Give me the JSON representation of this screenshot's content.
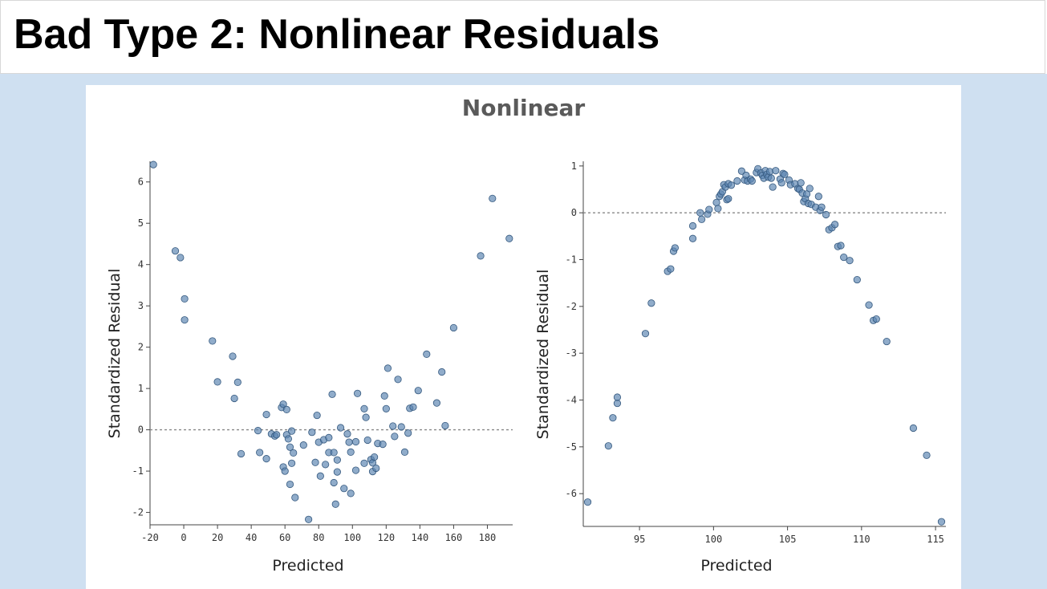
{
  "slide": {
    "title": "Bad Type 2: Nonlinear Residuals",
    "figure_title": "Nonlinear"
  },
  "colors": {
    "slide_background": "#cfe0f1",
    "point_fill": "#5b84b1",
    "point_stroke": "#34587e",
    "reference_line": "#888888"
  },
  "chart_data": [
    {
      "type": "scatter",
      "title": "",
      "xlabel": "Predicted",
      "ylabel": "Standardized Residual",
      "xlim": [
        -20,
        195
      ],
      "ylim": [
        -2.3,
        6.5
      ],
      "xticks": [
        -20,
        0,
        20,
        40,
        60,
        80,
        100,
        120,
        140,
        160,
        180
      ],
      "yticks": [
        -2,
        -1,
        0,
        1,
        2,
        3,
        4,
        5,
        6
      ],
      "reference_line": {
        "y": 0,
        "style": "dotted"
      },
      "grid": false,
      "points": [
        [
          -18,
          6.42
        ],
        [
          -5,
          4.33
        ],
        [
          -2,
          4.17
        ],
        [
          0.5,
          3.17
        ],
        [
          0.5,
          2.66
        ],
        [
          17,
          2.15
        ],
        [
          20,
          1.16
        ],
        [
          29,
          1.78
        ],
        [
          30,
          0.76
        ],
        [
          32,
          1.15
        ],
        [
          34,
          -0.58
        ],
        [
          44,
          -0.02
        ],
        [
          45,
          -0.55
        ],
        [
          49,
          -0.7
        ],
        [
          49,
          0.37
        ],
        [
          52,
          -0.1
        ],
        [
          54,
          -0.15
        ],
        [
          55,
          -0.12
        ],
        [
          58,
          0.54
        ],
        [
          59,
          0.62
        ],
        [
          59,
          -0.9
        ],
        [
          60,
          -1.0
        ],
        [
          61,
          0.49
        ],
        [
          61,
          -0.12
        ],
        [
          62,
          -0.22
        ],
        [
          63,
          -1.32
        ],
        [
          63,
          -0.42
        ],
        [
          64,
          -0.03
        ],
        [
          64,
          -0.81
        ],
        [
          65,
          -0.56
        ],
        [
          66,
          -1.64
        ],
        [
          71,
          -0.37
        ],
        [
          74,
          -2.17
        ],
        [
          76,
          -0.06
        ],
        [
          78,
          -0.79
        ],
        [
          79,
          0.35
        ],
        [
          80,
          -0.3
        ],
        [
          81,
          -1.12
        ],
        [
          83,
          -0.24
        ],
        [
          84,
          -0.84
        ],
        [
          86,
          -0.19
        ],
        [
          86,
          -0.55
        ],
        [
          88,
          0.86
        ],
        [
          89,
          -0.55
        ],
        [
          89,
          -1.28
        ],
        [
          90,
          -1.8
        ],
        [
          91,
          -0.73
        ],
        [
          91,
          -1.02
        ],
        [
          93,
          0.05
        ],
        [
          95,
          -1.42
        ],
        [
          97,
          -0.1
        ],
        [
          98,
          -0.3
        ],
        [
          99,
          -0.54
        ],
        [
          99,
          -1.54
        ],
        [
          102,
          -0.29
        ],
        [
          102,
          -0.98
        ],
        [
          103,
          0.88
        ],
        [
          107,
          -0.81
        ],
        [
          107,
          0.51
        ],
        [
          108,
          0.3
        ],
        [
          109,
          -0.25
        ],
        [
          111,
          -0.72
        ],
        [
          112,
          -1.01
        ],
        [
          112,
          -0.8
        ],
        [
          113,
          -0.66
        ],
        [
          114,
          -0.93
        ],
        [
          115,
          -0.33
        ],
        [
          118,
          -0.35
        ],
        [
          119,
          0.82
        ],
        [
          120,
          0.51
        ],
        [
          121,
          1.49
        ],
        [
          124,
          0.09
        ],
        [
          125,
          -0.16
        ],
        [
          127,
          1.22
        ],
        [
          129,
          0.07
        ],
        [
          131,
          -0.54
        ],
        [
          133,
          -0.08
        ],
        [
          134,
          0.52
        ],
        [
          136,
          0.55
        ],
        [
          139,
          0.95
        ],
        [
          144,
          1.83
        ],
        [
          150,
          0.65
        ],
        [
          153,
          1.4
        ],
        [
          155,
          0.1
        ],
        [
          160,
          2.47
        ],
        [
          176,
          4.21
        ],
        [
          183,
          5.6
        ],
        [
          193,
          4.63
        ]
      ]
    },
    {
      "type": "scatter",
      "title": "",
      "xlabel": "Predicted",
      "ylabel": "Standardized Residual",
      "xlim": [
        91.2,
        115.7
      ],
      "ylim": [
        -6.7,
        1.1
      ],
      "xticks": [
        95,
        100,
        105,
        110,
        115
      ],
      "yticks": [
        -6,
        -5,
        -4,
        -3,
        -2,
        -1,
        0,
        1
      ],
      "reference_line": {
        "y": 0,
        "style": "dotted"
      },
      "grid": false,
      "points": [
        [
          91.5,
          -6.18
        ],
        [
          92.9,
          -4.98
        ],
        [
          93.2,
          -4.38
        ],
        [
          93.5,
          -4.07
        ],
        [
          93.5,
          -3.94
        ],
        [
          95.4,
          -2.58
        ],
        [
          95.8,
          -1.93
        ],
        [
          96.9,
          -1.25
        ],
        [
          97.1,
          -1.2
        ],
        [
          97.3,
          -0.82
        ],
        [
          97.4,
          -0.75
        ],
        [
          98.6,
          -0.28
        ],
        [
          98.6,
          -0.55
        ],
        [
          99.1,
          0.0
        ],
        [
          99.2,
          -0.14
        ],
        [
          99.6,
          -0.03
        ],
        [
          99.7,
          0.07
        ],
        [
          100.2,
          0.22
        ],
        [
          100.3,
          0.09
        ],
        [
          100.4,
          0.35
        ],
        [
          100.5,
          0.4
        ],
        [
          100.6,
          0.45
        ],
        [
          100.7,
          0.6
        ],
        [
          100.8,
          0.55
        ],
        [
          100.9,
          0.28
        ],
        [
          101.0,
          0.3
        ],
        [
          101.0,
          0.62
        ],
        [
          101.2,
          0.59
        ],
        [
          101.6,
          0.68
        ],
        [
          101.9,
          0.89
        ],
        [
          102.1,
          0.7
        ],
        [
          102.2,
          0.8
        ],
        [
          102.3,
          0.68
        ],
        [
          102.5,
          0.72
        ],
        [
          102.6,
          0.68
        ],
        [
          102.9,
          0.86
        ],
        [
          103.0,
          0.94
        ],
        [
          103.2,
          0.85
        ],
        [
          103.3,
          0.8
        ],
        [
          103.4,
          0.74
        ],
        [
          103.5,
          0.9
        ],
        [
          103.6,
          0.82
        ],
        [
          103.7,
          0.76
        ],
        [
          103.8,
          0.88
        ],
        [
          103.9,
          0.74
        ],
        [
          104.0,
          0.55
        ],
        [
          104.2,
          0.9
        ],
        [
          104.5,
          0.72
        ],
        [
          104.6,
          0.64
        ],
        [
          104.7,
          0.84
        ],
        [
          104.8,
          0.82
        ],
        [
          105.1,
          0.7
        ],
        [
          105.2,
          0.6
        ],
        [
          105.5,
          0.62
        ],
        [
          105.7,
          0.52
        ],
        [
          105.8,
          0.5
        ],
        [
          105.9,
          0.64
        ],
        [
          106.0,
          0.42
        ],
        [
          106.1,
          0.24
        ],
        [
          106.2,
          0.3
        ],
        [
          106.3,
          0.4
        ],
        [
          106.4,
          0.2
        ],
        [
          106.5,
          0.52
        ],
        [
          106.6,
          0.18
        ],
        [
          106.9,
          0.12
        ],
        [
          107.1,
          0.35
        ],
        [
          107.2,
          0.05
        ],
        [
          107.3,
          0.12
        ],
        [
          107.6,
          -0.04
        ],
        [
          107.8,
          -0.36
        ],
        [
          108.0,
          -0.32
        ],
        [
          108.2,
          -0.25
        ],
        [
          108.4,
          -0.72
        ],
        [
          108.6,
          -0.7
        ],
        [
          108.8,
          -0.95
        ],
        [
          109.2,
          -1.02
        ],
        [
          109.7,
          -1.43
        ],
        [
          110.5,
          -1.97
        ],
        [
          110.8,
          -2.3
        ],
        [
          111.0,
          -2.27
        ],
        [
          111.7,
          -2.75
        ],
        [
          113.5,
          -4.6
        ],
        [
          114.4,
          -5.18
        ],
        [
          115.4,
          -6.6
        ]
      ]
    }
  ]
}
